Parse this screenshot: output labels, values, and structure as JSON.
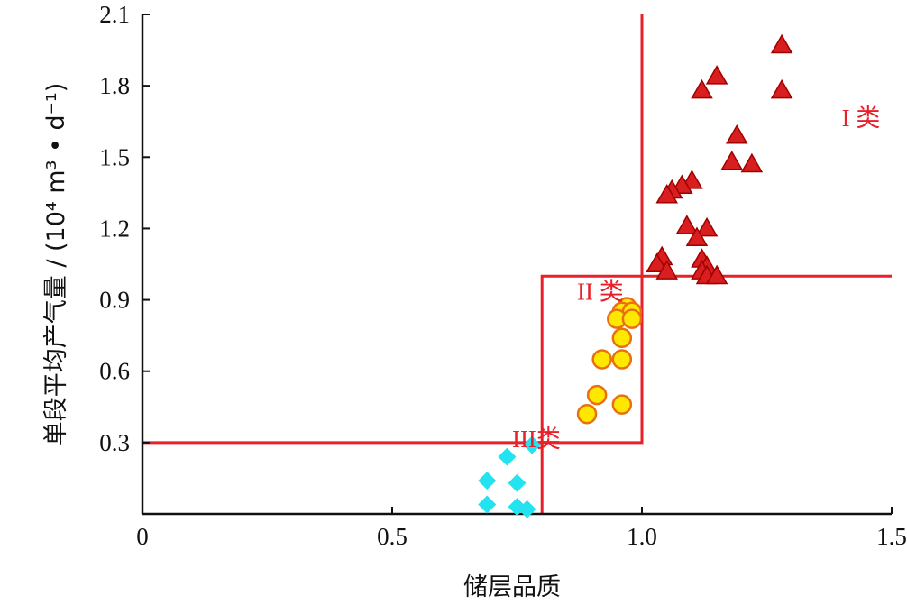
{
  "chart_data": {
    "type": "scatter",
    "title": "",
    "xlabel": "储层品质",
    "ylabel": "单段平均产气量 / (10⁴ m³ • d⁻¹)",
    "xlim": [
      0,
      1.5
    ],
    "ylim": [
      0,
      2.1
    ],
    "x_ticks": [
      {
        "value": 0,
        "label": "0"
      },
      {
        "value": 0.5,
        "label": "0.5"
      },
      {
        "value": 1.0,
        "label": "1.0"
      },
      {
        "value": 1.5,
        "label": "1.5"
      }
    ],
    "y_ticks": [
      {
        "value": 0.3,
        "label": "0.3"
      },
      {
        "value": 0.6,
        "label": "0.6"
      },
      {
        "value": 0.9,
        "label": "0.9"
      },
      {
        "value": 1.2,
        "label": "1.2"
      },
      {
        "value": 1.5,
        "label": "1.5"
      },
      {
        "value": 1.8,
        "label": "1.8"
      },
      {
        "value": 2.1,
        "label": "2.1"
      }
    ],
    "grid": false,
    "legend": "none",
    "colors": {
      "axis": "#111111",
      "boundary": "#e8202a",
      "class1_fill": "#d81e1e",
      "class1_stroke": "#a00000",
      "class2_fill": "#ffe800",
      "class2_stroke": "#e87010",
      "class3_fill": "#23e3f0"
    },
    "boundaries": [
      {
        "points": [
          [
            0,
            0.3
          ],
          [
            1.0,
            0.3
          ],
          [
            1.0,
            2.1
          ]
        ]
      },
      {
        "points": [
          [
            0.8,
            0
          ],
          [
            0.8,
            1.0
          ],
          [
            1.5,
            1.0
          ]
        ]
      }
    ],
    "series": [
      {
        "marker": "triangle",
        "points": [
          [
            1.28,
            1.97
          ],
          [
            1.15,
            1.84
          ],
          [
            1.12,
            1.78
          ],
          [
            1.28,
            1.78
          ],
          [
            1.19,
            1.59
          ],
          [
            1.18,
            1.48
          ],
          [
            1.22,
            1.47
          ],
          [
            1.1,
            1.4
          ],
          [
            1.08,
            1.38
          ],
          [
            1.06,
            1.36
          ],
          [
            1.05,
            1.34
          ],
          [
            1.09,
            1.21
          ],
          [
            1.13,
            1.2
          ],
          [
            1.11,
            1.16
          ],
          [
            1.04,
            1.08
          ],
          [
            1.12,
            1.07
          ],
          [
            1.03,
            1.05
          ],
          [
            1.13,
            1.04
          ],
          [
            1.05,
            1.02
          ],
          [
            1.12,
            1.02
          ],
          [
            1.13,
            1.0
          ],
          [
            1.15,
            1.0
          ]
        ]
      },
      {
        "marker": "circle",
        "points": [
          [
            0.97,
            0.87
          ],
          [
            0.96,
            0.85
          ],
          [
            0.98,
            0.85
          ],
          [
            0.95,
            0.82
          ],
          [
            0.98,
            0.82
          ],
          [
            0.96,
            0.74
          ],
          [
            0.92,
            0.65
          ],
          [
            0.96,
            0.65
          ],
          [
            0.91,
            0.5
          ],
          [
            0.96,
            0.46
          ],
          [
            0.89,
            0.42
          ]
        ]
      },
      {
        "marker": "diamond",
        "points": [
          [
            0.78,
            0.29
          ],
          [
            0.73,
            0.24
          ],
          [
            0.69,
            0.14
          ],
          [
            0.75,
            0.13
          ],
          [
            0.69,
            0.04
          ],
          [
            0.75,
            0.03
          ],
          [
            0.77,
            0.02
          ]
        ]
      }
    ],
    "annotations": [
      {
        "text": "I 类",
        "x": 1.4,
        "y": 1.63
      },
      {
        "text": "II 类",
        "x": 0.87,
        "y": 0.9
      },
      {
        "text": "III类",
        "x": 0.74,
        "y": 0.28
      }
    ]
  }
}
